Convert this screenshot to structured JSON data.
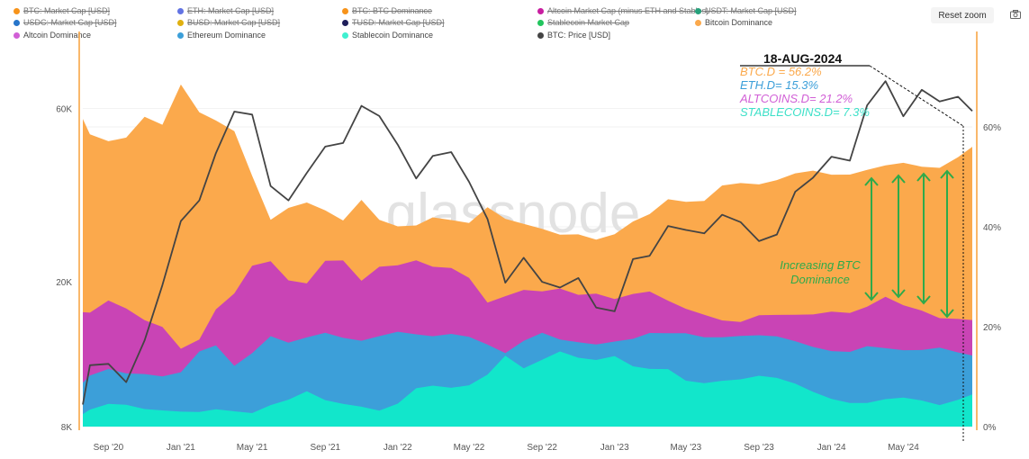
{
  "legend": {
    "items": [
      {
        "label": "BTC: Market Cap [USD]",
        "color": "#f7931a",
        "hidden": true
      },
      {
        "label": "ETH: Market Cap [USD]",
        "color": "#6273e3",
        "hidden": true
      },
      {
        "label": "BTC: BTC Dominance",
        "color": "#f7931a",
        "hidden": true
      },
      {
        "label": "Altcoin Market Cap (minus ETH and Stables)",
        "color": "#c81ea0",
        "hidden": true
      },
      {
        "label": "USDT: Market Cap [USD]",
        "color": "#26a17b",
        "hidden": true
      },
      {
        "label": "USDC: Market Cap [USD]",
        "color": "#2775ca",
        "hidden": true
      },
      {
        "label": "BUSD: Market Cap [USD]",
        "color": "#e0b010",
        "hidden": true
      },
      {
        "label": "TUSD: Market Cap [USD]",
        "color": "#1e1e5a",
        "hidden": true
      },
      {
        "label": "Stablecoin Market Cap",
        "color": "#22c55e",
        "hidden": true
      },
      {
        "label": "Bitcoin Dominance",
        "color": "#fba94c",
        "hidden": false
      },
      {
        "label": "Altcoin Dominance",
        "color": "#d15fd6",
        "hidden": false
      },
      {
        "label": "Ethereum Dominance",
        "color": "#3c9fd9",
        "hidden": false
      },
      {
        "label": "Stablecoin Dominance",
        "color": "#3ff0d0",
        "hidden": false
      },
      {
        "label": "BTC: Price [USD]",
        "color": "#444444",
        "hidden": false
      }
    ]
  },
  "toolbar": {
    "reset_zoom": "Reset zoom",
    "camera_icon": "camera-icon"
  },
  "watermark": "glassnode",
  "annotation": {
    "date": "18-AUG-2024",
    "btc": "BTC.D = 56.2%",
    "eth": "ETH.D= 15.3%",
    "alt": "ALTCOINS.D= 21.2%",
    "stable": "STABLECOINS.D= 7.3%",
    "note_line1": "Increasing BTC",
    "note_line2": "Dominance",
    "note_color": "#2eaa4a"
  },
  "chart_data": {
    "type": "area+line",
    "x_ticks": [
      "Sep '20",
      "Jan '21",
      "May '21",
      "Sep '21",
      "Jan '22",
      "May '22",
      "Sep '22",
      "Jan '23",
      "May '23",
      "Sep '23",
      "Jan '24",
      "May '24"
    ],
    "y_left": {
      "scale": "log",
      "ticks": [
        "60K",
        "20K",
        "8K"
      ],
      "tick_values": [
        60000,
        20000,
        8000
      ]
    },
    "y_right": {
      "ticks": [
        "60%",
        "40%",
        "20%",
        "0%"
      ],
      "tick_values": [
        60,
        40,
        20,
        0
      ]
    },
    "grid": true,
    "dates": [
      "2020-07-20",
      "2020-08-01",
      "2020-09-01",
      "2020-10-01",
      "2020-11-01",
      "2020-12-01",
      "2021-01-01",
      "2021-02-01",
      "2021-03-01",
      "2021-04-01",
      "2021-05-01",
      "2021-06-01",
      "2021-07-01",
      "2021-08-01",
      "2021-09-01",
      "2021-10-01",
      "2021-11-01",
      "2021-12-01",
      "2022-01-01",
      "2022-02-01",
      "2022-03-01",
      "2022-04-01",
      "2022-05-01",
      "2022-06-01",
      "2022-07-01",
      "2022-08-01",
      "2022-09-01",
      "2022-10-01",
      "2022-11-01",
      "2022-12-01",
      "2023-01-01",
      "2023-02-01",
      "2023-03-01",
      "2023-04-01",
      "2023-05-01",
      "2023-06-01",
      "2023-07-01",
      "2023-08-01",
      "2023-09-01",
      "2023-10-01",
      "2023-11-01",
      "2023-12-01",
      "2024-01-01",
      "2024-02-01",
      "2024-03-01",
      "2024-04-01",
      "2024-05-01",
      "2024-06-01",
      "2024-07-01",
      "2024-08-01",
      "2024-08-25"
    ],
    "series": [
      {
        "name": "Bitcoin Dominance",
        "color": "#fba94c",
        "axis": "right",
        "values": [
          61.6,
          58,
          56.6,
          57.8,
          62.5,
          61,
          68.6,
          62.5,
          60.7,
          59,
          50.6,
          42,
          44,
          44.5,
          42.7,
          41,
          45.7,
          42,
          40.4,
          40,
          41.3,
          41,
          41,
          44.5,
          42,
          40.4,
          39,
          38,
          38.6,
          38,
          39,
          41,
          42,
          45,
          45,
          45.7,
          48.8,
          48.8,
          48,
          48.8,
          50.6,
          51.7,
          51,
          50.6,
          51,
          51.7,
          52.6,
          52.4,
          52.4,
          54.2,
          55.7
        ]
      },
      {
        "name": "Altcoin Dominance",
        "color": "#c944b5",
        "axis": "right",
        "values": [
          22.9,
          22.3,
          24.7,
          23.6,
          21.8,
          20.5,
          15.7,
          17,
          22.9,
          26.5,
          32.6,
          33.7,
          29.5,
          28.3,
          32.6,
          33,
          29.5,
          32.6,
          32.6,
          33,
          31.4,
          31.4,
          30,
          25.4,
          26.5,
          27.2,
          26.5,
          27.2,
          26.5,
          27.2,
          26,
          26.5,
          26.5,
          24.7,
          23.6,
          22.9,
          21.8,
          21,
          21.8,
          21.8,
          22.3,
          22.9,
          23.6,
          22.9,
          23.6,
          25.4,
          24.1,
          23.6,
          22.3,
          21.8,
          21
        ]
      },
      {
        "name": "Ethereum Dominance",
        "color": "#3c9fd9",
        "axis": "right",
        "values": [
          8.8,
          9.7,
          11,
          10.6,
          11,
          10.6,
          11,
          14.6,
          15.7,
          12,
          15.1,
          18.7,
          17,
          17.5,
          18.2,
          17.5,
          17.5,
          18.7,
          19.3,
          18.2,
          17.5,
          18.2,
          18.2,
          17,
          15.1,
          17,
          18.2,
          17,
          17,
          17,
          17.5,
          17.5,
          18.2,
          18.2,
          18.7,
          18.4,
          18.4,
          18.2,
          17.8,
          17.5,
          17,
          16.4,
          15.7,
          15.1,
          15.7,
          15.1,
          15.1,
          15.7,
          16.4,
          15.1,
          13.9
        ]
      },
      {
        "name": "Stablecoin Dominance",
        "color": "#12e6cb",
        "axis": "right",
        "values": [
          2.5,
          2.9,
          4,
          4.3,
          4,
          3.8,
          3.1,
          2.5,
          2.9,
          2.9,
          3.1,
          4.9,
          5.6,
          6.7,
          4.7,
          4.3,
          4.3,
          3.8,
          4.9,
          7.4,
          7.6,
          7.4,
          8.5,
          11,
          14.6,
          11.5,
          12.8,
          14.6,
          13.9,
          13.9,
          14.6,
          12,
          11,
          11,
          9.2,
          9.2,
          9.7,
          9.5,
          9.7,
          9.2,
          8.5,
          7.4,
          6.1,
          4.9,
          4.3,
          4.9,
          5.6,
          5.6,
          4.9,
          5.6,
          6.1
        ]
      },
      {
        "name": "BTC: Price [USD]",
        "color": "#444444",
        "axis": "left",
        "values": [
          9200,
          11800,
          11900,
          10600,
          13800,
          19600,
          29400,
          33500,
          45200,
          58800,
          57700,
          36700,
          33500,
          39900,
          47100,
          48200,
          61000,
          57200,
          47700,
          38500,
          44400,
          45500,
          37700,
          29800,
          19900,
          23300,
          20000,
          19300,
          20500,
          17000,
          16600,
          23100,
          23600,
          28500,
          27800,
          27200,
          30600,
          29200,
          25900,
          27000,
          35400,
          38700,
          44200,
          43100,
          61200,
          71300,
          57100,
          67500,
          62700,
          64600,
          59000
        ]
      }
    ]
  }
}
